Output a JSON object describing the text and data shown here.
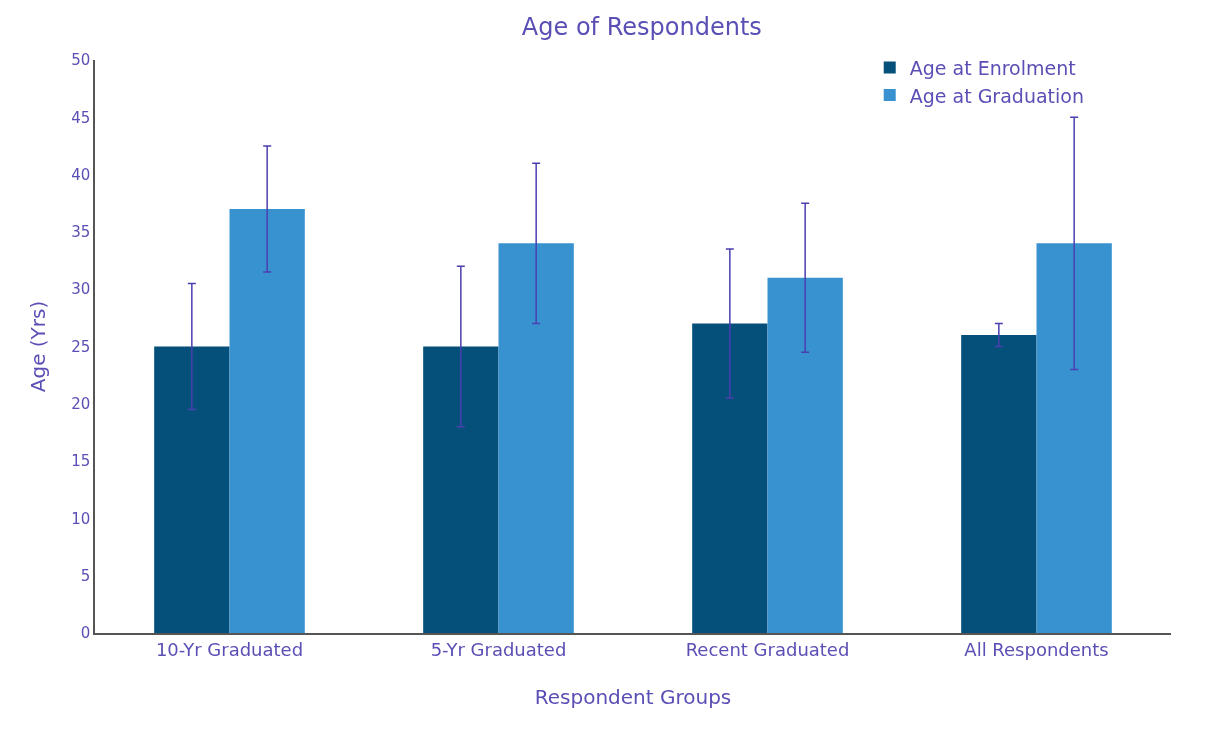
{
  "chart_data": {
    "type": "bar",
    "title": "Age of Respondents",
    "xlabel": "Respondent Groups",
    "ylabel": "Age (Yrs)",
    "categories": [
      "10-Yr Graduated",
      "5-Yr Graduated",
      "Recent Graduated",
      "All Respondents"
    ],
    "series": [
      {
        "name": "Age at Enrolment",
        "color": "#04507a",
        "values": [
          25,
          25,
          27,
          26
        ],
        "errors": [
          5.5,
          7,
          6.5,
          1
        ]
      },
      {
        "name": "Age at Graduation",
        "color": "#3892d0",
        "values": [
          37,
          34,
          31,
          34
        ],
        "errors": [
          5.5,
          7,
          6.5,
          11
        ]
      }
    ],
    "ylim": [
      0,
      50
    ],
    "yticks": [
      0,
      5,
      10,
      15,
      20,
      25,
      30,
      35,
      40,
      45,
      50
    ],
    "grid": false,
    "legend": "top right"
  }
}
